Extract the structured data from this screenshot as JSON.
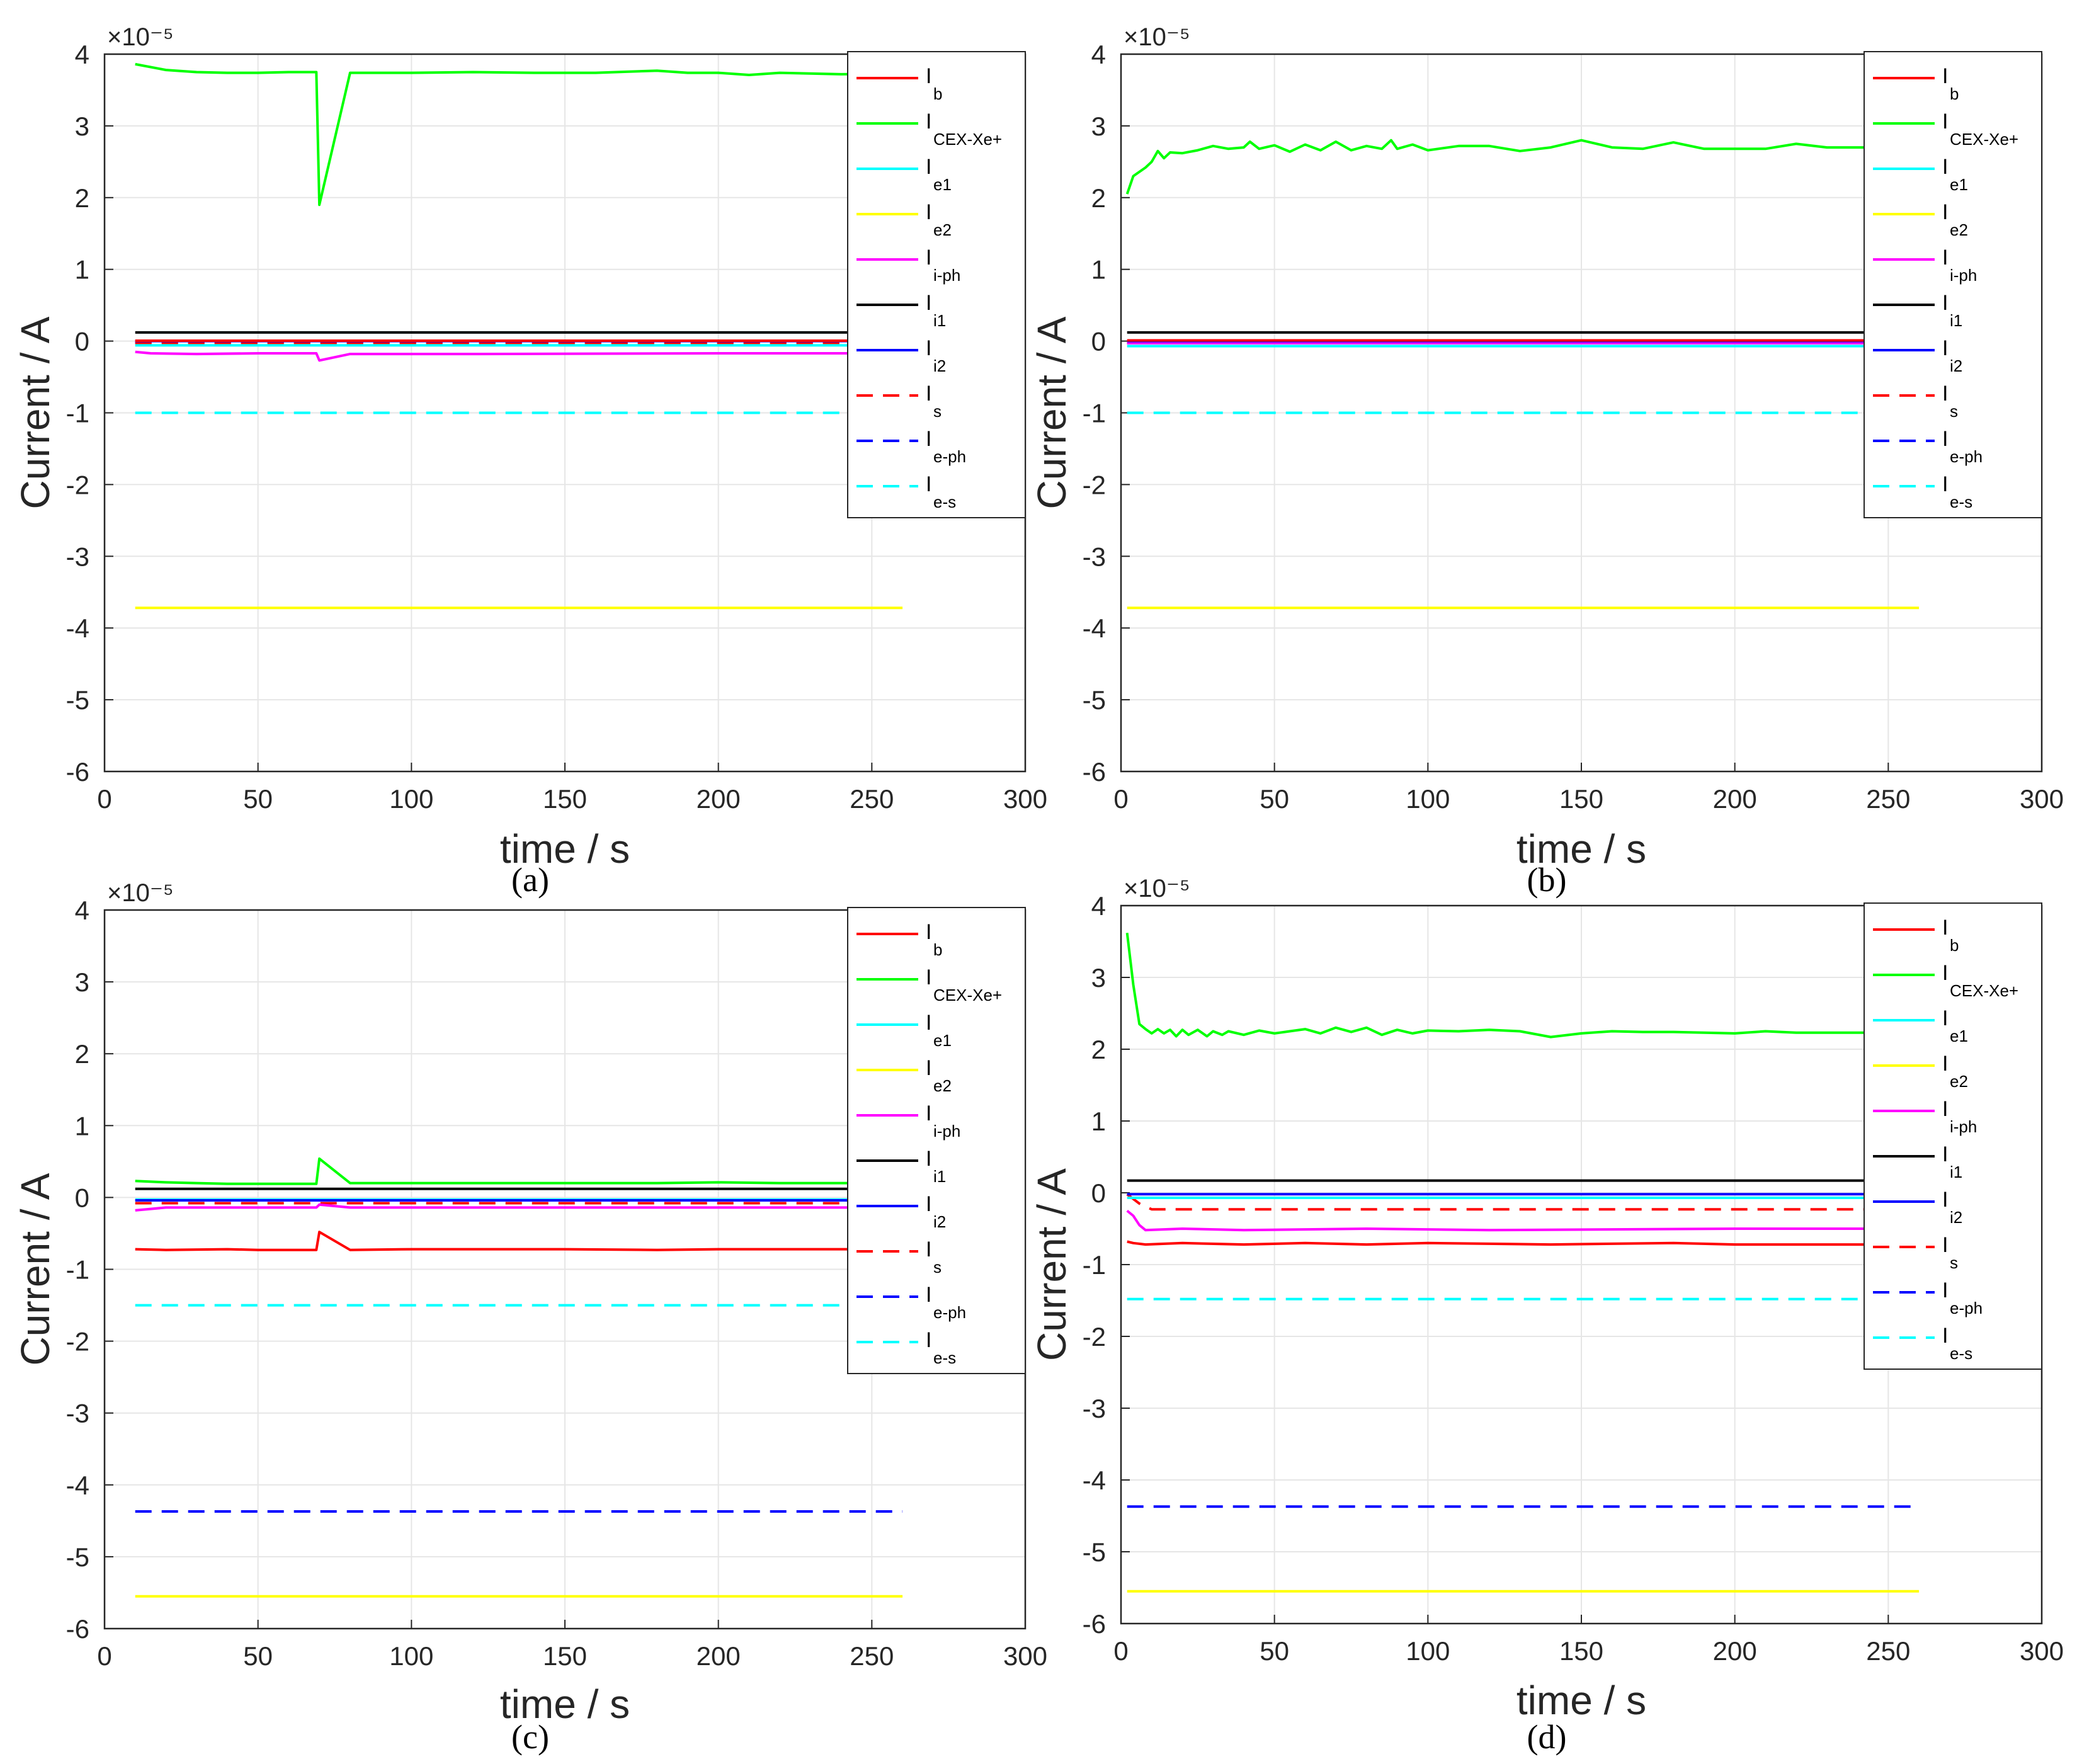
{
  "figure": {
    "panels_order": [
      "a",
      "b",
      "c",
      "d"
    ]
  },
  "colors": {
    "Ib": "#ff0000",
    "ICEX": "#00ff00",
    "Ie1": "#00ffff",
    "Ie2": "#ffff00",
    "Iph": "#ff00ff",
    "Ii1": "#000000",
    "Ii2": "#0000ff",
    "Is": "#ff0000",
    "Ieph": "#0000ff",
    "Ies": "#00ffff"
  },
  "legend": [
    {
      "key": "Ib",
      "base": "I",
      "sub": "b",
      "dashed": false
    },
    {
      "key": "ICEX",
      "base": "I",
      "sub": "CEX-Xe+",
      "dashed": false
    },
    {
      "key": "Ie1",
      "base": "I",
      "sub": "e1",
      "dashed": false
    },
    {
      "key": "Ie2",
      "base": "I",
      "sub": "e2",
      "dashed": false
    },
    {
      "key": "Iph",
      "base": "I",
      "sub": "i-ph",
      "dashed": false
    },
    {
      "key": "Ii1",
      "base": "I",
      "sub": "i1",
      "dashed": false
    },
    {
      "key": "Ii2",
      "base": "I",
      "sub": "i2",
      "dashed": false
    },
    {
      "key": "Is",
      "base": "I",
      "sub": "s",
      "dashed": true
    },
    {
      "key": "Ieph",
      "base": "I",
      "sub": "e-ph",
      "dashed": true
    },
    {
      "key": "Ies",
      "base": "I",
      "sub": "e-s",
      "dashed": true
    }
  ],
  "chart_data": [
    {
      "panel": "a",
      "caption": "(a)",
      "type": "line",
      "xlabel": "time / s",
      "ylabel": "Current / A",
      "exponent": "×10⁻⁵",
      "xlim": [
        0,
        300
      ],
      "ylim": [
        -6,
        4
      ],
      "xticks": [
        "0",
        "50",
        "100",
        "150",
        "200",
        "250",
        "300"
      ],
      "yticks": [
        "-6",
        "-5",
        "-4",
        "-3",
        "-2",
        "-1",
        "0",
        "1",
        "2",
        "3",
        "4"
      ],
      "grid": true,
      "legend_position": "top-right",
      "series": [
        {
          "key": "Ie2",
          "x": [
            10,
            260
          ],
          "y": [
            -3.72,
            -3.72
          ]
        },
        {
          "key": "Ies",
          "x": [
            10,
            260
          ],
          "y": [
            -1.0,
            -1.0
          ]
        },
        {
          "key": "Ieph",
          "x": [
            10,
            260
          ],
          "y": [
            -0.02,
            -0.02
          ]
        },
        {
          "key": "Is",
          "x": [
            10,
            260
          ],
          "y": [
            -0.03,
            -0.03
          ]
        },
        {
          "key": "Ie1",
          "x": [
            10,
            260
          ],
          "y": [
            -0.06,
            -0.06
          ]
        },
        {
          "key": "Iph",
          "x": [
            10,
            15,
            30,
            50,
            69,
            70,
            80,
            120,
            200,
            260
          ],
          "y": [
            -0.15,
            -0.17,
            -0.18,
            -0.17,
            -0.17,
            -0.27,
            -0.18,
            -0.18,
            -0.17,
            -0.17
          ]
        },
        {
          "key": "Ii2",
          "x": [
            10,
            260
          ],
          "y": [
            0.0,
            0.0
          ]
        },
        {
          "key": "Ib",
          "x": [
            10,
            260
          ],
          "y": [
            0.005,
            0.005
          ]
        },
        {
          "key": "Ii1",
          "x": [
            10,
            260
          ],
          "y": [
            0.12,
            0.12
          ]
        },
        {
          "key": "ICEX",
          "x": [
            10,
            20,
            30,
            40,
            50,
            60,
            69,
            70,
            80,
            100,
            120,
            140,
            160,
            180,
            190,
            200,
            210,
            220,
            240,
            260
          ],
          "y": [
            3.86,
            3.78,
            3.75,
            3.74,
            3.74,
            3.75,
            3.75,
            1.9,
            3.74,
            3.74,
            3.75,
            3.74,
            3.74,
            3.77,
            3.74,
            3.74,
            3.71,
            3.74,
            3.72,
            3.73
          ]
        }
      ]
    },
    {
      "panel": "b",
      "caption": "(b)",
      "type": "line",
      "xlabel": "time / s",
      "ylabel": "Current / A",
      "exponent": "×10⁻⁵",
      "xlim": [
        0,
        300
      ],
      "ylim": [
        -6,
        4
      ],
      "xticks": [
        "0",
        "50",
        "100",
        "150",
        "200",
        "250",
        "300"
      ],
      "yticks": [
        "-6",
        "-5",
        "-4",
        "-3",
        "-2",
        "-1",
        "0",
        "1",
        "2",
        "3",
        "4"
      ],
      "grid": true,
      "legend_position": "top-right",
      "series": [
        {
          "key": "Ie2",
          "x": [
            2,
            260
          ],
          "y": [
            -3.72,
            -3.72
          ]
        },
        {
          "key": "Ies",
          "x": [
            2,
            260
          ],
          "y": [
            -1.0,
            -1.0
          ]
        },
        {
          "key": "Ieph",
          "x": [
            2,
            260
          ],
          "y": [
            -0.03,
            -0.03
          ]
        },
        {
          "key": "Is",
          "x": [
            2,
            260
          ],
          "y": [
            -0.02,
            -0.02
          ]
        },
        {
          "key": "Ie1",
          "x": [
            2,
            260
          ],
          "y": [
            -0.07,
            -0.07
          ]
        },
        {
          "key": "Iph",
          "x": [
            2,
            260
          ],
          "y": [
            -0.03,
            -0.03
          ]
        },
        {
          "key": "Ii2",
          "x": [
            2,
            260
          ],
          "y": [
            0.0,
            0.0
          ]
        },
        {
          "key": "Ib",
          "x": [
            2,
            260
          ],
          "y": [
            0.01,
            0.01
          ]
        },
        {
          "key": "Ii1",
          "x": [
            2,
            260
          ],
          "y": [
            0.12,
            0.12
          ]
        },
        {
          "key": "ICEX",
          "x": [
            2,
            4,
            8,
            10,
            12,
            14,
            16,
            20,
            25,
            30,
            35,
            40,
            42,
            45,
            50,
            55,
            60,
            65,
            70,
            75,
            80,
            85,
            88,
            90,
            95,
            100,
            110,
            120,
            130,
            140,
            150,
            160,
            170,
            180,
            190,
            200,
            210,
            220,
            230,
            240,
            250,
            260
          ],
          "y": [
            2.05,
            2.3,
            2.42,
            2.5,
            2.65,
            2.55,
            2.63,
            2.62,
            2.66,
            2.72,
            2.68,
            2.7,
            2.78,
            2.68,
            2.73,
            2.64,
            2.74,
            2.66,
            2.78,
            2.66,
            2.72,
            2.68,
            2.8,
            2.68,
            2.74,
            2.66,
            2.72,
            2.72,
            2.65,
            2.7,
            2.8,
            2.7,
            2.68,
            2.77,
            2.68,
            2.68,
            2.68,
            2.75,
            2.7,
            2.7,
            2.7,
            2.7
          ]
        }
      ]
    },
    {
      "panel": "c",
      "caption": "(c)",
      "type": "line",
      "xlabel": "time / s",
      "ylabel": "Current / A",
      "exponent": "×10⁻⁵",
      "xlim": [
        0,
        300
      ],
      "ylim": [
        -6,
        4
      ],
      "xticks": [
        "0",
        "50",
        "100",
        "150",
        "200",
        "250",
        "300"
      ],
      "yticks": [
        "-6",
        "-5",
        "-4",
        "-3",
        "-2",
        "-1",
        "0",
        "1",
        "2",
        "3",
        "4"
      ],
      "grid": true,
      "legend_position": "top-right",
      "series": [
        {
          "key": "Ie2",
          "x": [
            10,
            260
          ],
          "y": [
            -5.55,
            -5.55
          ]
        },
        {
          "key": "Ieph",
          "x": [
            10,
            260
          ],
          "y": [
            -4.37,
            -4.37
          ]
        },
        {
          "key": "Ies",
          "x": [
            10,
            260
          ],
          "y": [
            -1.5,
            -1.5
          ]
        },
        {
          "key": "Ib",
          "x": [
            10,
            20,
            40,
            50,
            69,
            70,
            80,
            100,
            150,
            180,
            200,
            260
          ],
          "y": [
            -0.72,
            -0.73,
            -0.72,
            -0.73,
            -0.73,
            -0.48,
            -0.73,
            -0.72,
            -0.72,
            -0.73,
            -0.72,
            -0.72
          ]
        },
        {
          "key": "Is",
          "x": [
            10,
            260
          ],
          "y": [
            -0.08,
            -0.08
          ]
        },
        {
          "key": "Iph",
          "x": [
            10,
            20,
            40,
            69,
            70,
            80,
            260
          ],
          "y": [
            -0.18,
            -0.14,
            -0.14,
            -0.14,
            -0.1,
            -0.14,
            -0.14
          ]
        },
        {
          "key": "Ie1",
          "x": [
            10,
            260
          ],
          "y": [
            -0.03,
            -0.03
          ]
        },
        {
          "key": "Ii2",
          "x": [
            10,
            260
          ],
          "y": [
            -0.04,
            -0.04
          ]
        },
        {
          "key": "Ii1",
          "x": [
            10,
            260
          ],
          "y": [
            0.12,
            0.12
          ]
        },
        {
          "key": "ICEX",
          "x": [
            10,
            20,
            30,
            40,
            50,
            60,
            69,
            70,
            80,
            100,
            120,
            150,
            180,
            200,
            220,
            260
          ],
          "y": [
            0.23,
            0.21,
            0.2,
            0.19,
            0.19,
            0.19,
            0.19,
            0.54,
            0.2,
            0.2,
            0.2,
            0.2,
            0.2,
            0.21,
            0.2,
            0.2
          ]
        }
      ]
    },
    {
      "panel": "d",
      "caption": "(d)",
      "type": "line",
      "xlabel": "time / s",
      "ylabel": "Current / A",
      "exponent": "×10⁻⁵",
      "xlim": [
        0,
        300
      ],
      "ylim": [
        -6,
        4
      ],
      "xticks": [
        "0",
        "50",
        "100",
        "150",
        "200",
        "250",
        "300"
      ],
      "yticks": [
        "-6",
        "-5",
        "-4",
        "-3",
        "-2",
        "-1",
        "0",
        "1",
        "2",
        "3",
        "4"
      ],
      "grid": true,
      "legend_position": "top-right",
      "series": [
        {
          "key": "Ie2",
          "x": [
            2,
            260
          ],
          "y": [
            -5.55,
            -5.55
          ]
        },
        {
          "key": "Ieph",
          "x": [
            2,
            260
          ],
          "y": [
            -4.37,
            -4.37
          ]
        },
        {
          "key": "Ies",
          "x": [
            2,
            260
          ],
          "y": [
            -1.48,
            -1.48
          ]
        },
        {
          "key": "Ib",
          "x": [
            2,
            4,
            8,
            20,
            40,
            60,
            80,
            100,
            140,
            180,
            200,
            260
          ],
          "y": [
            -0.68,
            -0.7,
            -0.72,
            -0.7,
            -0.72,
            -0.7,
            -0.72,
            -0.7,
            -0.72,
            -0.7,
            -0.72,
            -0.72
          ]
        },
        {
          "key": "Iph",
          "x": [
            2,
            4,
            6,
            8,
            20,
            40,
            80,
            120,
            200,
            260
          ],
          "y": [
            -0.25,
            -0.32,
            -0.45,
            -0.52,
            -0.5,
            -0.52,
            -0.5,
            -0.52,
            -0.5,
            -0.5
          ]
        },
        {
          "key": "Is",
          "x": [
            2,
            6,
            10,
            260
          ],
          "y": [
            -0.02,
            -0.15,
            -0.23,
            -0.23
          ]
        },
        {
          "key": "Ie1",
          "x": [
            2,
            260
          ],
          "y": [
            -0.07,
            -0.07
          ]
        },
        {
          "key": "Ii2",
          "x": [
            2,
            260
          ],
          "y": [
            -0.02,
            -0.02
          ]
        },
        {
          "key": "Ii1",
          "x": [
            2,
            260
          ],
          "y": [
            0.17,
            0.17
          ]
        },
        {
          "key": "ICEX",
          "x": [
            2,
            4,
            6,
            8,
            10,
            12,
            14,
            16,
            18,
            20,
            22,
            25,
            28,
            30,
            33,
            35,
            40,
            45,
            50,
            55,
            60,
            65,
            70,
            75,
            80,
            85,
            90,
            95,
            100,
            110,
            120,
            130,
            140,
            150,
            160,
            170,
            180,
            190,
            200,
            210,
            220,
            230,
            240,
            250,
            260
          ],
          "y": [
            3.62,
            2.9,
            2.35,
            2.28,
            2.22,
            2.28,
            2.22,
            2.27,
            2.18,
            2.27,
            2.2,
            2.27,
            2.18,
            2.25,
            2.2,
            2.25,
            2.2,
            2.26,
            2.22,
            2.25,
            2.28,
            2.22,
            2.3,
            2.24,
            2.3,
            2.2,
            2.27,
            2.22,
            2.26,
            2.25,
            2.27,
            2.25,
            2.17,
            2.22,
            2.25,
            2.24,
            2.24,
            2.23,
            2.22,
            2.25,
            2.23,
            2.23,
            2.23,
            2.23,
            2.23
          ]
        }
      ]
    }
  ]
}
